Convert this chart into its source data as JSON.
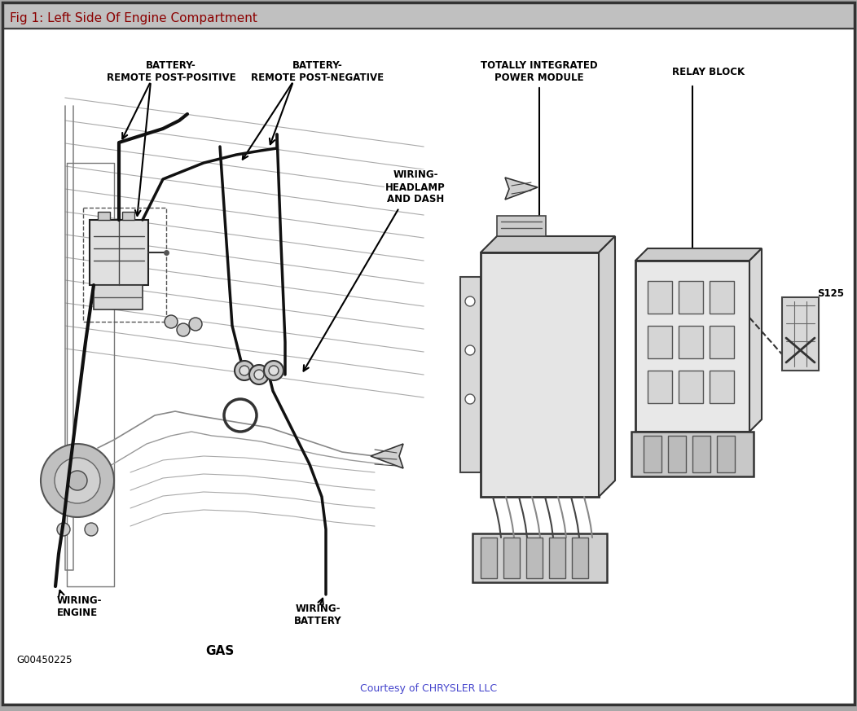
{
  "title": "Fig 1: Left Side Of Engine Compartment",
  "title_color": "#8B0000",
  "title_bg": "#C8C8C8",
  "bg_color": "#FFFFFF",
  "outer_bg": "#A8A8A8",
  "footer_text": "Courtesy of CHRYSLER LLC",
  "footer_color": "#4444CC",
  "code_text": "G00450225",
  "fig_width": 10.52,
  "fig_height": 8.73,
  "dpi": 100,
  "labels": {
    "battery_pos": "BATTERY-\nREMOTE POST-POSITIVE",
    "battery_neg": "BATTERY-\nREMOTE POST-NEGATIVE",
    "headlamp": "WIRING-\nHEADLAMP\nAND DASH",
    "wiring_engine": "WIRING-\nENGINE",
    "wiring_battery": "WIRING-\nBATTERY",
    "gas": "GAS",
    "tipm": "TOTALLY INTEGRATED\nPOWER MODULE",
    "relay_block": "RELAY BLOCK",
    "s125": "S125"
  }
}
